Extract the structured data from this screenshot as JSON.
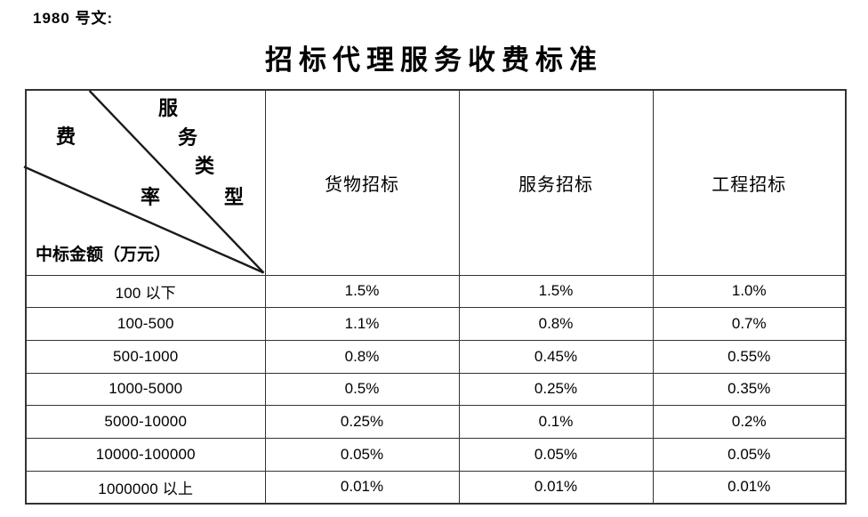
{
  "page": {
    "doc_label": "1980 号文:",
    "title": "招标代理服务收费标准"
  },
  "table": {
    "corner": {
      "rate_axis_chars": [
        "费",
        "率"
      ],
      "type_axis_chars": [
        "服",
        "务",
        "类",
        "型"
      ],
      "row_axis_label": "中标金额（万元）"
    },
    "columns": [
      "货物招标",
      "服务招标",
      "工程招标"
    ],
    "rows": [
      {
        "range": "100 以下",
        "values": [
          "1.5%",
          "1.5%",
          "1.0%"
        ]
      },
      {
        "range": "100-500",
        "values": [
          "1.1%",
          "0.8%",
          "0.7%"
        ]
      },
      {
        "range": "500-1000",
        "values": [
          "0.8%",
          "0.45%",
          "0.55%"
        ]
      },
      {
        "range": "1000-5000",
        "values": [
          "0.5%",
          "0.25%",
          "0.35%"
        ]
      },
      {
        "range": "5000-10000",
        "values": [
          "0.25%",
          "0.1%",
          "0.2%"
        ]
      },
      {
        "range": "10000-100000",
        "values": [
          "0.05%",
          "0.05%",
          "0.05%"
        ]
      },
      {
        "range": "1000000 以上",
        "values": [
          "0.01%",
          "0.01%",
          "0.01%"
        ]
      }
    ]
  },
  "border_color": "#333333",
  "text_color": "#000000"
}
